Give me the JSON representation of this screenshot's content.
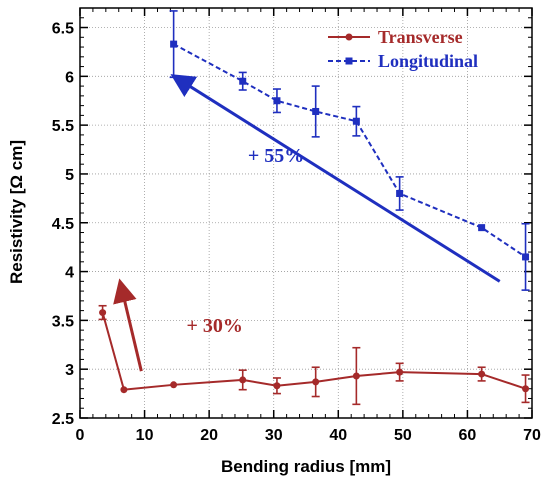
{
  "chart_data": {
    "type": "line",
    "xlabel": "Bending radius [mm]",
    "ylabel": "Resistivity [Ω cm]",
    "xlim": [
      0,
      70
    ],
    "ylim": [
      2.5,
      6.7
    ],
    "xticks": [
      0,
      10,
      20,
      30,
      40,
      50,
      60,
      70
    ],
    "yticks": [
      2.5,
      3,
      3.5,
      4,
      4.5,
      5,
      5.5,
      6,
      6.5
    ],
    "xtick_labels": [
      "0",
      "10",
      "20",
      "30",
      "40",
      "50",
      "60",
      "70"
    ],
    "ytick_labels": [
      "2.5",
      "3",
      "3.5",
      "4",
      "4.5",
      "5",
      "5.5",
      "6",
      "6.5"
    ],
    "grid": true,
    "legend_position": "top-right",
    "series": [
      {
        "name": "Transverse",
        "color": "#a52a2a",
        "marker": "circle",
        "line_style": "solid",
        "x": [
          3.5,
          6.8,
          14.5,
          25.2,
          30.5,
          36.5,
          42.8,
          49.5,
          62.2,
          69.0
        ],
        "y": [
          3.58,
          2.79,
          2.84,
          2.89,
          2.83,
          2.87,
          2.93,
          2.97,
          2.95,
          2.8
        ],
        "err": [
          0.07,
          0.0,
          0.0,
          0.1,
          0.08,
          0.15,
          0.29,
          0.09,
          0.07,
          0.14
        ]
      },
      {
        "name": "Longitudinal",
        "color": "#1f2fbf",
        "marker": "square",
        "line_style": "dashed",
        "x": [
          14.5,
          25.2,
          30.5,
          36.5,
          42.8,
          49.5,
          62.2,
          69.0
        ],
        "y": [
          6.33,
          5.95,
          5.75,
          5.64,
          5.54,
          4.8,
          4.45,
          4.15
        ],
        "err": [
          0.34,
          0.09,
          0.12,
          0.26,
          0.15,
          0.17,
          0.0,
          0.34
        ]
      }
    ],
    "annotations": [
      {
        "text": "+ 55%",
        "color": "#1f2fbf",
        "arrow_from": [
          65,
          3.9
        ],
        "arrow_to": [
          14.8,
          5.99
        ],
        "text_pos": [
          26,
          5.12
        ]
      },
      {
        "text": "+ 30%",
        "color": "#a52a2a",
        "arrow_from": [
          9.5,
          2.98
        ],
        "arrow_to": [
          6.3,
          3.87
        ],
        "text_pos": [
          16.5,
          3.38
        ]
      }
    ]
  }
}
